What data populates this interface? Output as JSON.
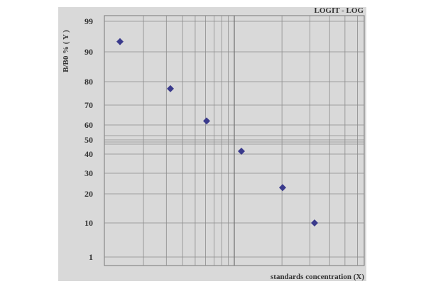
{
  "chart_data": {
    "type": "scatter",
    "title": "LOGIT - LOG",
    "xlabel": "standards concentration (X)",
    "ylabel": "B/B0 % ( Y )",
    "y_scale": "logit",
    "y_ticks": [
      "99",
      "90",
      "80",
      "70",
      "60",
      "50",
      "40",
      "30",
      "20",
      "10",
      "1"
    ],
    "x_scale": "log",
    "x_tick_labels": [],
    "grid": true,
    "marker": "diamond",
    "series": [
      {
        "points": [
          {
            "y": 93
          },
          {
            "y": 77
          },
          {
            "y": 62
          },
          {
            "y": 42
          },
          {
            "y": 23
          },
          {
            "y": 10
          }
        ]
      }
    ]
  },
  "colors": {
    "plot_background": "#d9d9d9",
    "grid": "#8c8c8c",
    "marker": "#3a3a8c",
    "text": "#333333"
  }
}
